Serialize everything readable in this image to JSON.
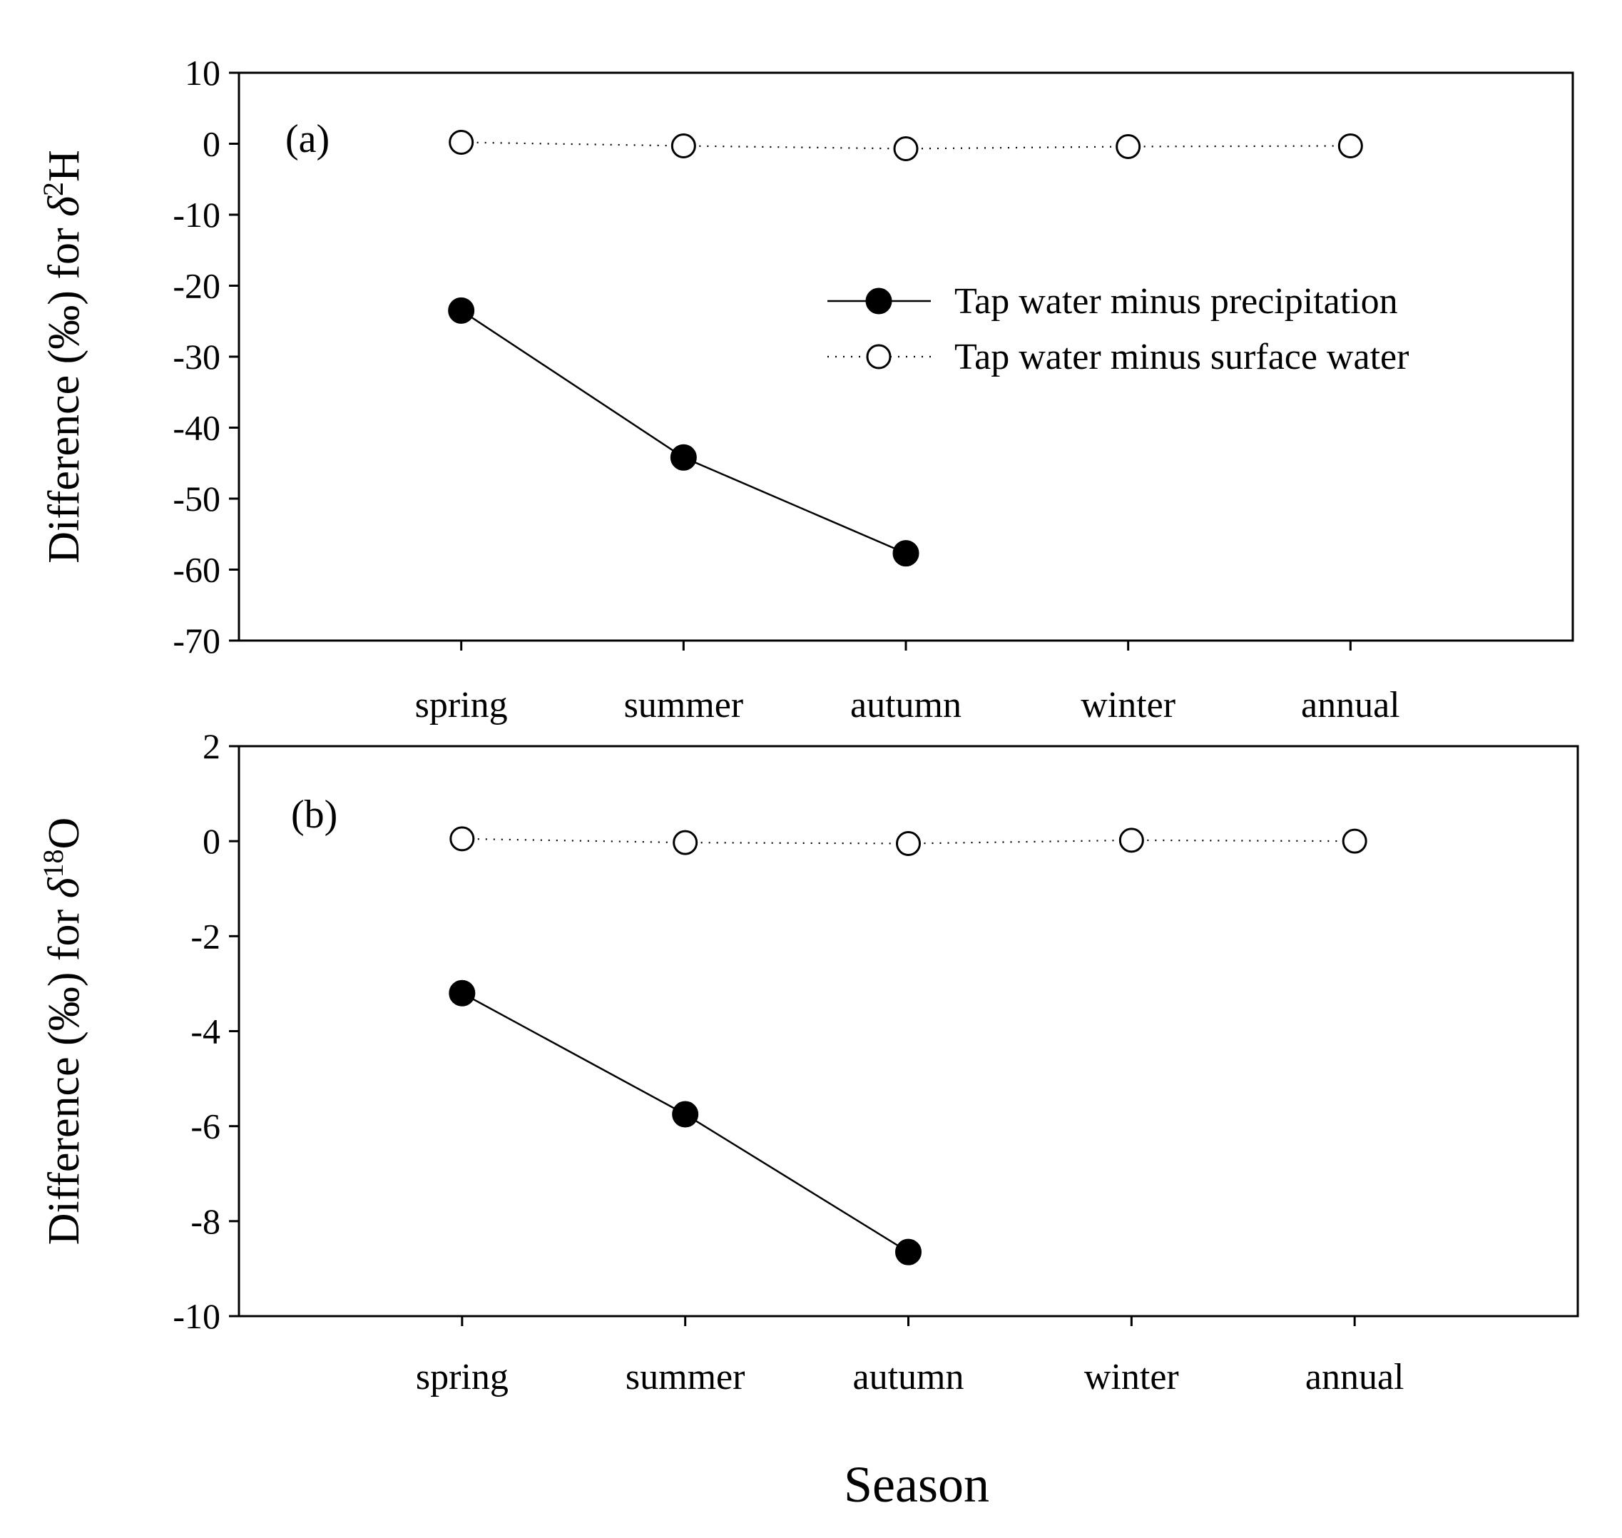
{
  "figure": {
    "xlabel": "Season",
    "legend": {
      "placement": "top-right",
      "entries": [
        {
          "label": "Tap water minus precipitation",
          "marker": "filled-circle",
          "line": "solid"
        },
        {
          "label": "Tap water minus surface water",
          "marker": "open-circle",
          "line": "dotted"
        }
      ]
    }
  },
  "chart_data": [
    {
      "type": "line",
      "panel": "(a)",
      "ylabel_prefix": "Difference (",
      "ylabel_unit": "‰",
      "ylabel_mid": ") for ",
      "ylabel_delta": "δ",
      "ylabel_sup": "2",
      "ylabel_element": "H",
      "ylim": [
        -70,
        10
      ],
      "yticks": [
        10,
        0,
        -10,
        -20,
        -30,
        -40,
        -50,
        -60,
        -70
      ],
      "categories": [
        "spring",
        "summer",
        "autumn",
        "winter",
        "annual"
      ],
      "xlim": [
        -1,
        5
      ],
      "series": [
        {
          "name": "Tap water minus precipitation",
          "marker": "filled",
          "values": [
            -23.5,
            -44.2,
            -57.7,
            null,
            null
          ]
        },
        {
          "name": "Tap water minus surface water",
          "marker": "open",
          "values": [
            0.2,
            -0.3,
            -0.7,
            -0.4,
            -0.3
          ]
        }
      ]
    },
    {
      "type": "line",
      "panel": "(b)",
      "ylabel_prefix": "Difference (",
      "ylabel_unit": "‰",
      "ylabel_mid": ") for ",
      "ylabel_delta": "δ",
      "ylabel_sup": "18",
      "ylabel_element": "O",
      "ylim": [
        -10,
        2
      ],
      "yticks": [
        2,
        0,
        -2,
        -4,
        -6,
        -8,
        -10
      ],
      "categories": [
        "spring",
        "summer",
        "autumn",
        "winter",
        "annual"
      ],
      "xlim": [
        -1,
        5
      ],
      "series": [
        {
          "name": "Tap water minus precipitation",
          "marker": "filled",
          "values": [
            -3.2,
            -5.75,
            -8.65,
            null,
            null
          ]
        },
        {
          "name": "Tap water minus surface water",
          "marker": "open",
          "values": [
            0.05,
            -0.03,
            -0.05,
            0.02,
            0.0
          ]
        }
      ]
    }
  ]
}
